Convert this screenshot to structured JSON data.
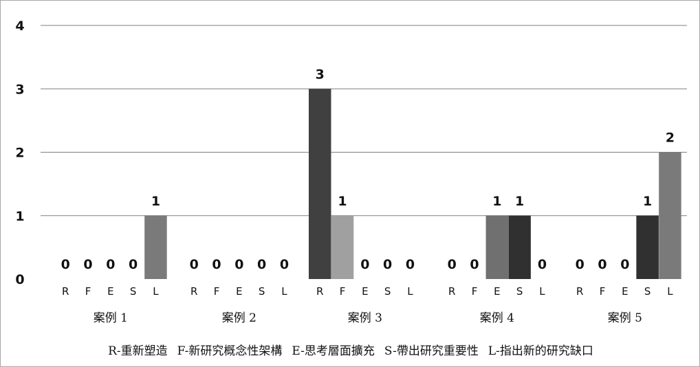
{
  "chart_data": {
    "type": "bar",
    "ylim": [
      0,
      4
    ],
    "yticks": [
      "0",
      "1",
      "2",
      "3",
      "4"
    ],
    "grid": true,
    "categories": [
      "R",
      "F",
      "E",
      "S",
      "L"
    ],
    "groups": [
      {
        "label": "案例 1",
        "values": [
          0,
          0,
          0,
          0,
          1
        ]
      },
      {
        "label": "案例 2",
        "values": [
          0,
          0,
          0,
          0,
          0
        ]
      },
      {
        "label": "案例 3",
        "values": [
          3,
          1,
          0,
          0,
          0
        ]
      },
      {
        "label": "案例 4",
        "values": [
          0,
          0,
          1,
          1,
          0
        ]
      },
      {
        "label": "案例 5",
        "values": [
          0,
          0,
          0,
          1,
          2
        ]
      }
    ],
    "bar_colors": [
      "#404040",
      "#a0a0a0",
      "#707070",
      "#303030",
      "#7a7a7a"
    ],
    "legend": [
      "R-重新塑造",
      "F-新研究概念性架構",
      "E-思考層面擴充",
      "S-帶出研究重要性",
      "L-指出新的研究缺口"
    ],
    "legend_position": "bottom"
  }
}
